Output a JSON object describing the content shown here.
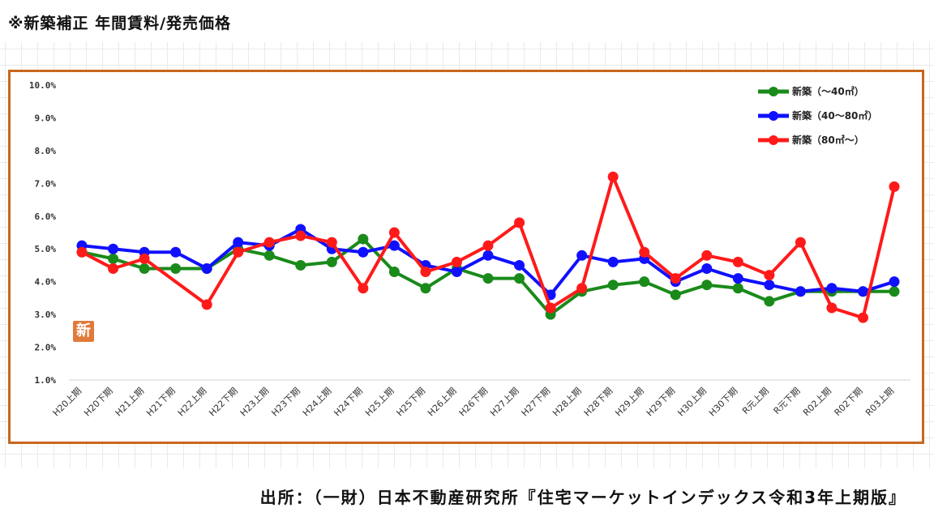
{
  "header": {
    "title": "※新築補正 年間賃料/発売価格"
  },
  "footer": {
    "source": "出所：（一財）日本不動産研究所『住宅マーケットインデックス令和3年上期版』"
  },
  "badge": {
    "label": "新"
  },
  "colors": {
    "frame": "#c8671e",
    "series_small": "#1a8a1a",
    "series_mid": "#1010ff",
    "series_large": "#ff1a1a",
    "badge": "#e07a3a"
  },
  "chart_data": {
    "type": "line",
    "title": "",
    "xlabel": "",
    "ylabel": "",
    "ylim": [
      1.0,
      10.0
    ],
    "yticks": [
      "1.0%",
      "2.0%",
      "3.0%",
      "4.0%",
      "5.0%",
      "6.0%",
      "7.0%",
      "8.0%",
      "9.0%",
      "10.0%"
    ],
    "grid": false,
    "legend_position": "top-right",
    "categories": [
      "H20上期",
      "H20下期",
      "H21上期",
      "H21下期",
      "H22上期",
      "H22下期",
      "H23上期",
      "H23下期",
      "H24上期",
      "H24下期",
      "H25上期",
      "H25下期",
      "H26上期",
      "H26下期",
      "H27上期",
      "H27下期",
      "H28上期",
      "H28下期",
      "H29上期",
      "H29下期",
      "H30上期",
      "H30下期",
      "R元上期",
      "R元下期",
      "R02上期",
      "R02下期",
      "R03上期"
    ],
    "series": [
      {
        "name": "新築（～40㎡）",
        "color": "#1a8a1a",
        "values": [
          4.9,
          4.7,
          4.4,
          4.4,
          4.4,
          5.0,
          4.8,
          4.5,
          4.6,
          5.3,
          4.3,
          3.8,
          4.4,
          4.1,
          4.1,
          3.0,
          3.7,
          3.9,
          4.0,
          3.6,
          3.9,
          3.8,
          3.4,
          3.7,
          3.7,
          3.7,
          3.7
        ]
      },
      {
        "name": "新築（40～80㎡）",
        "color": "#1010ff",
        "values": [
          5.1,
          5.0,
          4.9,
          4.9,
          4.4,
          5.2,
          5.1,
          5.6,
          5.0,
          4.9,
          5.1,
          4.5,
          4.3,
          4.8,
          4.5,
          3.6,
          4.8,
          4.6,
          4.7,
          4.0,
          4.4,
          4.1,
          3.9,
          3.7,
          3.8,
          3.7,
          4.0
        ]
      },
      {
        "name": "新築（80㎡～）",
        "color": "#ff1a1a",
        "values": [
          4.9,
          4.4,
          4.7,
          null,
          3.3,
          4.9,
          5.2,
          5.4,
          5.2,
          3.8,
          5.5,
          4.3,
          4.6,
          5.1,
          5.8,
          3.2,
          3.8,
          7.2,
          4.9,
          4.1,
          4.8,
          4.6,
          4.2,
          5.2,
          3.2,
          2.9,
          6.9
        ]
      }
    ]
  }
}
